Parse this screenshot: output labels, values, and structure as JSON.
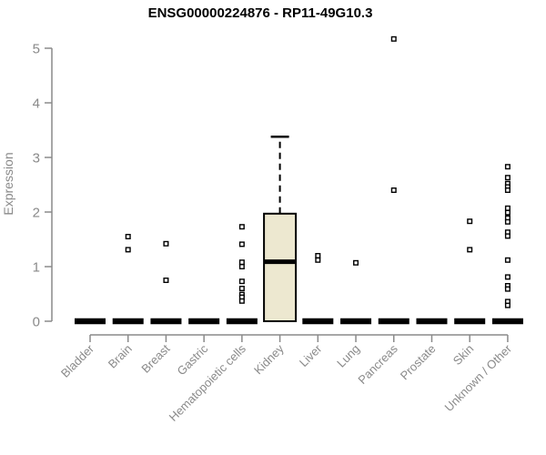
{
  "page": {
    "background": "#FFFFFF"
  },
  "chart_data": {
    "type": "boxplot",
    "title": "ENSG00000224876 - RP11-49G10.3",
    "ylabel": "Expression",
    "xlabel": "",
    "ylim": [
      0,
      5
    ],
    "yticks": [
      0,
      1,
      2,
      3,
      4,
      5
    ],
    "grid": false,
    "legend": "none",
    "axis_color": "#8A8A8A",
    "box_fill": "#EDE8D0",
    "box_stroke": "#000000",
    "outlier_fill": "#FFFFFF",
    "categories": [
      "Bladder",
      "Brain",
      "Breast",
      "Gastric",
      "Hematopoietic cells",
      "Kidney",
      "Liver",
      "Lung",
      "Pancreas",
      "Prostate",
      "Skin",
      "Unknown / Other"
    ],
    "series": [
      {
        "category": "Bladder",
        "q1": 0,
        "median": 0,
        "q3": 0,
        "whisker_low": 0,
        "whisker_high": 0,
        "outliers": []
      },
      {
        "category": "Brain",
        "q1": 0,
        "median": 0,
        "q3": 0,
        "whisker_low": 0,
        "whisker_high": 0,
        "outliers": [
          1.55,
          1.31
        ]
      },
      {
        "category": "Breast",
        "q1": 0,
        "median": 0,
        "q3": 0,
        "whisker_low": 0,
        "whisker_high": 0,
        "outliers": [
          1.42,
          0.75
        ]
      },
      {
        "category": "Gastric",
        "q1": 0,
        "median": 0,
        "q3": 0,
        "whisker_low": 0,
        "whisker_high": 0,
        "outliers": []
      },
      {
        "category": "Hematopoietic cells",
        "q1": 0,
        "median": 0,
        "q3": 0,
        "whisker_low": 0,
        "whisker_high": 0,
        "outliers": [
          1.73,
          1.41,
          1.08,
          1.0,
          0.73,
          0.6,
          0.49,
          0.44,
          0.37
        ]
      },
      {
        "category": "Kidney",
        "q1": 0,
        "median": 1.09,
        "q3": 1.97,
        "whisker_low": 0,
        "whisker_high": 3.38,
        "outliers": []
      },
      {
        "category": "Liver",
        "q1": 0,
        "median": 0,
        "q3": 0,
        "whisker_low": 0,
        "whisker_high": 0,
        "outliers": [
          1.2,
          1.12
        ]
      },
      {
        "category": "Lung",
        "q1": 0,
        "median": 0,
        "q3": 0,
        "whisker_low": 0,
        "whisker_high": 0,
        "outliers": [
          1.07
        ]
      },
      {
        "category": "Pancreas",
        "q1": 0,
        "median": 0,
        "q3": 0,
        "whisker_low": 0,
        "whisker_high": 0,
        "outliers": [
          5.17,
          2.4
        ]
      },
      {
        "category": "Prostate",
        "q1": 0,
        "median": 0,
        "q3": 0,
        "whisker_low": 0,
        "whisker_high": 0,
        "outliers": []
      },
      {
        "category": "Skin",
        "q1": 0,
        "median": 0,
        "q3": 0,
        "whisker_low": 0,
        "whisker_high": 0,
        "outliers": [
          1.83,
          1.31
        ]
      },
      {
        "category": "Unknown / Other",
        "q1": 0,
        "median": 0,
        "q3": 0,
        "whisker_low": 0,
        "whisker_high": 0,
        "outliers": [
          2.83,
          2.63,
          2.52,
          2.46,
          2.4,
          2.07,
          1.99,
          1.89,
          1.82,
          1.63,
          1.56,
          1.12,
          0.81,
          0.65,
          0.59,
          0.36,
          0.29
        ]
      }
    ]
  }
}
